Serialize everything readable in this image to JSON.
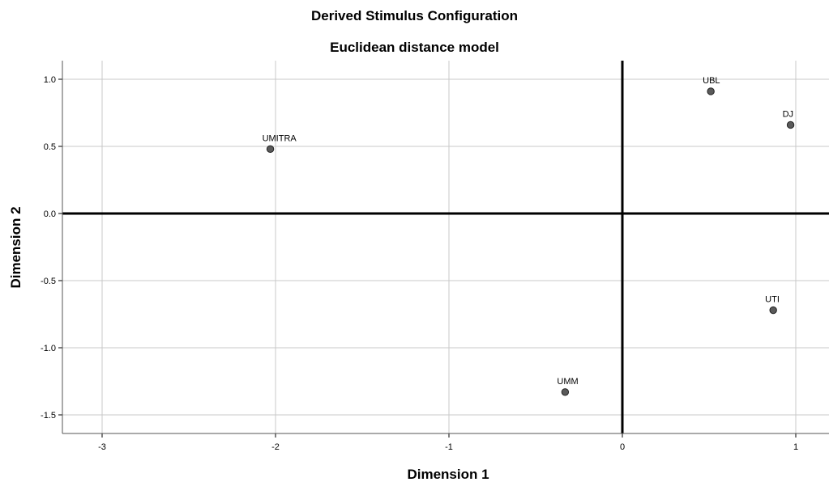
{
  "chart_data": {
    "type": "scatter",
    "title": "Derived Stimulus Configuration",
    "subtitle": "Euclidean distance model",
    "xlabel": "Dimension 1",
    "ylabel": "Dimension 2",
    "xlim": [
      -3.2,
      1.2
    ],
    "ylim": [
      -1.62,
      1.14
    ],
    "xticks": [
      -3,
      -2,
      -1,
      0,
      1
    ],
    "xtick_labels": [
      "-3",
      "-2",
      "-1",
      "0",
      "1"
    ],
    "yticks": [
      -1.5,
      -1.0,
      -0.5,
      0.0,
      0.5,
      1.0
    ],
    "ytick_labels": [
      "-1.5",
      "-1.0",
      "-0.5",
      "0.0",
      "0.5",
      "1.0"
    ],
    "grid": true,
    "reference_lines": {
      "x": 0,
      "y": 0
    },
    "marker_color": "#5a5a5a",
    "points": [
      {
        "label": "UBL",
        "x": 0.51,
        "y": 0.91
      },
      {
        "label": "DJ",
        "x": 0.97,
        "y": 0.66
      },
      {
        "label": "UMITRA",
        "x": -2.03,
        "y": 0.48
      },
      {
        "label": "UTI",
        "x": 0.87,
        "y": -0.72
      },
      {
        "label": "UMM",
        "x": -0.33,
        "y": -1.33
      }
    ]
  }
}
